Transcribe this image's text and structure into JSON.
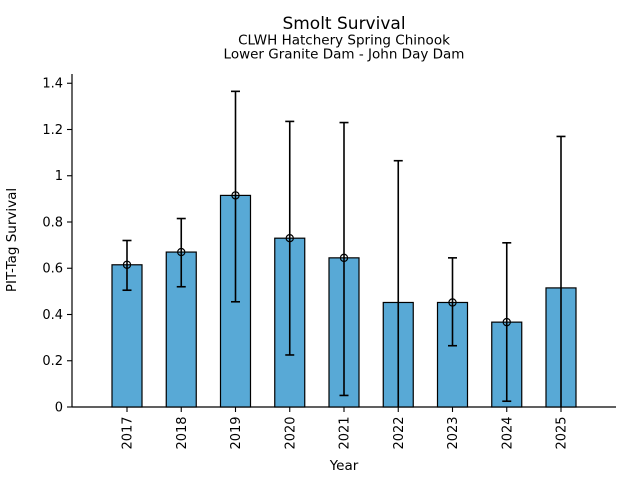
{
  "page": {
    "background": "#ffffff",
    "text_color": "#000000"
  },
  "chart_data": {
    "type": "bar",
    "title": "Smolt Survival",
    "subtitle_line1": "CLWH Hatchery Spring Chinook",
    "subtitle_line2": "Lower Granite Dam - John Day Dam",
    "xlabel": "Year",
    "ylabel": "PIT-Tag Survival",
    "categories": [
      "2017",
      "2018",
      "2019",
      "2020",
      "2021",
      "2022",
      "2023",
      "2024",
      "2025"
    ],
    "values": [
      0.615,
      0.67,
      0.915,
      0.73,
      0.645,
      0.452,
      0.452,
      0.367,
      0.515
    ],
    "error_low": [
      0.505,
      0.52,
      0.455,
      0.225,
      0.05,
      0.0,
      0.265,
      0.025,
      0.0
    ],
    "error_high": [
      0.72,
      0.815,
      1.365,
      1.235,
      1.23,
      1.065,
      0.645,
      0.71,
      1.17
    ],
    "point_marker_visible": [
      true,
      true,
      true,
      true,
      true,
      false,
      true,
      true,
      false
    ],
    "ylim": [
      0,
      1.44
    ],
    "yticks": [
      0,
      0.2,
      0.4,
      0.6,
      0.8,
      1,
      1.2,
      1.4
    ],
    "ytick_labels": [
      "0",
      "0.2",
      "0.4",
      "0.6",
      "0.8",
      "1",
      "1.2",
      "1.4"
    ],
    "bar_color": "#58A9D6",
    "bar_edge_color": "#000000",
    "error_color": "#000000",
    "marker_style": "open-circle",
    "grid": false,
    "legend": "none"
  }
}
